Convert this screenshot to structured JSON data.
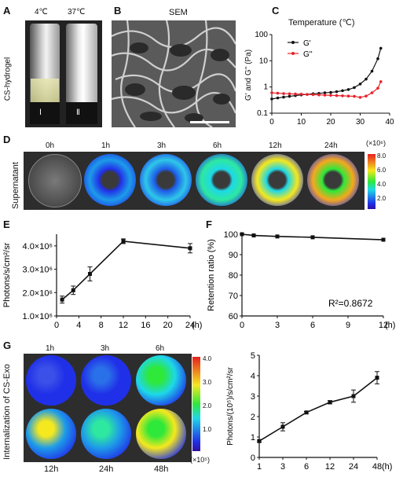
{
  "panels": {
    "A": "A",
    "B": "B",
    "C": "C",
    "D": "D",
    "E": "E",
    "F": "F",
    "G": "G"
  },
  "panelA": {
    "temp1": "4℃",
    "temp2": "37℃",
    "ylabel": "CS-hydrogel",
    "vial1": "Ⅰ",
    "vial2": "Ⅱ"
  },
  "panelB": {
    "title": "SEM"
  },
  "panelC": {
    "title": "Temperature (℃)",
    "ylabel": "G' and G'' (Pa)",
    "legend1": "G'",
    "legend2": "G''"
  },
  "panelD": {
    "ylabel": "Supernatant",
    "times": [
      "0h",
      "1h",
      "3h",
      "6h",
      "12h",
      "24h"
    ],
    "scale_unit": "(×10⁶)",
    "scale_ticks": [
      "8.0",
      "6.0",
      "4.0",
      "2.0"
    ]
  },
  "panelE": {
    "ylabel": "Photons/s/cm²/sr",
    "xunit": "(h)"
  },
  "panelF": {
    "ylabel": "Retention ratio (%)",
    "xunit": "(h)",
    "annotation": "R²=0.8672"
  },
  "panelG": {
    "ylabel": "Internalization of CS-Exo",
    "top_times": [
      "1h",
      "3h",
      "6h"
    ],
    "bottom_times": [
      "12h",
      "24h",
      "48h"
    ],
    "scale_unit": "(×10⁵)",
    "scale_ticks": [
      "4.0",
      "3.0",
      "2.0",
      "1.0"
    ],
    "chart_ylabel": "Photons/(10⁵)/s/cm²/sr",
    "xunit": "(h)"
  },
  "colors": {
    "black": "#111111",
    "red": "#e8222b"
  },
  "chart_data": [
    {
      "type": "line",
      "panel": "C",
      "title": "Temperature (℃)",
      "ylabel": "G' and G'' (Pa)",
      "yscale": "log",
      "xlim": [
        0,
        40
      ],
      "ylim": [
        0.1,
        100
      ],
      "xticks": [
        "0",
        "10",
        "20",
        "30",
        "40"
      ],
      "yticks": [
        "0.1",
        "1",
        "10",
        "100"
      ],
      "series": [
        {
          "name": "G'",
          "color": "#111111",
          "x": [
            0,
            2,
            4,
            6,
            8,
            10,
            12,
            14,
            16,
            18,
            20,
            22,
            24,
            26,
            28,
            30,
            32,
            34,
            36,
            37
          ],
          "y": [
            0.35,
            0.38,
            0.41,
            0.44,
            0.47,
            0.5,
            0.52,
            0.55,
            0.57,
            0.6,
            0.62,
            0.66,
            0.72,
            0.8,
            0.95,
            1.3,
            2.0,
            4,
            12,
            30
          ]
        },
        {
          "name": "G''",
          "color": "#e8222b",
          "x": [
            0,
            2,
            4,
            6,
            8,
            10,
            12,
            14,
            16,
            18,
            20,
            22,
            24,
            26,
            28,
            30,
            32,
            34,
            36,
            37
          ],
          "y": [
            0.6,
            0.58,
            0.56,
            0.55,
            0.54,
            0.53,
            0.52,
            0.51,
            0.5,
            0.49,
            0.48,
            0.47,
            0.46,
            0.45,
            0.44,
            0.4,
            0.45,
            0.6,
            0.9,
            1.6
          ]
        }
      ]
    },
    {
      "type": "line",
      "panel": "E",
      "ylabel": "Photons/s/cm²/sr",
      "xlim": [
        0,
        24
      ],
      "ylim": [
        1000000,
        4500000
      ],
      "xticks": [
        "0",
        "4",
        "8",
        "12",
        "16",
        "20",
        "24"
      ],
      "yticks": [
        "1.0×10⁶",
        "2.0×10⁶",
        "3.0×10⁶",
        "4.0×10⁶"
      ],
      "series": [
        {
          "name": "",
          "x": [
            1,
            3,
            6,
            12,
            24
          ],
          "y": [
            1700000,
            2100000,
            2800000,
            4200000,
            3900000
          ],
          "err": [
            150000,
            180000,
            300000,
            100000,
            200000
          ]
        }
      ]
    },
    {
      "type": "line",
      "panel": "F",
      "ylabel": "Retention ratio (%)",
      "xlim": [
        0,
        12
      ],
      "ylim": [
        60,
        100
      ],
      "xticks": [
        "0",
        "3",
        "6",
        "9",
        "12"
      ],
      "yticks": [
        "60",
        "70",
        "80",
        "90",
        "100"
      ],
      "series": [
        {
          "name": "",
          "x": [
            0,
            1,
            3,
            6,
            12
          ],
          "y": [
            100,
            99.4,
            98.9,
            98.5,
            97.3
          ]
        }
      ]
    },
    {
      "type": "line",
      "panel": "G",
      "ylabel": "Photons/(10⁵)/s/cm²/sr",
      "xlim": [
        0,
        5
      ],
      "ylim": [
        0,
        5
      ],
      "xticks": [
        "1",
        "3",
        "6",
        "12",
        "24",
        "48"
      ],
      "yticks": [
        "0",
        "1",
        "2",
        "3",
        "4",
        "5"
      ],
      "series": [
        {
          "name": "",
          "x": [
            "1",
            "3",
            "6",
            "12",
            "24",
            "48"
          ],
          "y": [
            0.8,
            1.5,
            2.2,
            2.7,
            3.0,
            3.9
          ],
          "err": [
            0.05,
            0.2,
            0.05,
            0.08,
            0.3,
            0.3
          ]
        }
      ]
    }
  ]
}
